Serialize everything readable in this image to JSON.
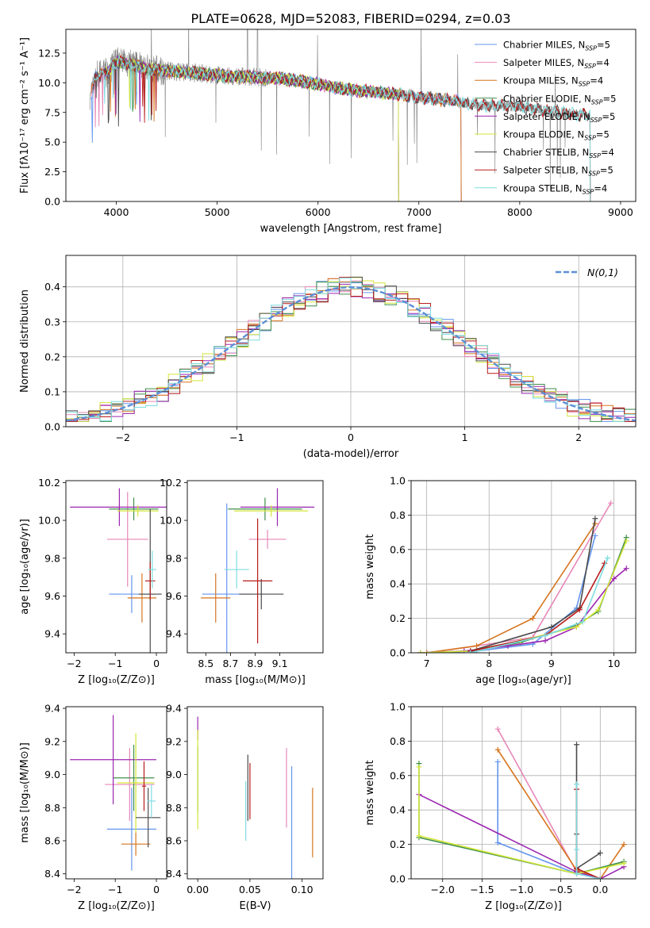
{
  "figure_title": "PLATE=0628, MJD=52083, FIBERID=0294, z=0.03",
  "colors": {
    "Chabrier MILES": "#6495ED",
    "Salpeter MILES": "#E787B8",
    "Kroupa MILES": "#D6751F",
    "Chabrier ELODIE": "#3F8F4A",
    "Salpeter ELODIE": "#9B27B0",
    "Kroupa ELODIE": "#D4E639",
    "Chabrier STELIB": "#4A4A4A",
    "Salpeter STELIB": "#B81C1C",
    "Kroupa STELIB": "#7FDDE0",
    "data": "#808080",
    "gaussian": "#5B8FD6"
  },
  "chart_data": [
    {
      "id": "spectrum",
      "type": "line",
      "title": "PLATE=0628, MJD=52083, FIBERID=0294, z=0.03",
      "xlabel": "wavelength [Angstrom, rest frame]",
      "ylabel": "Flux [fλ10⁻¹⁷ erg cm⁻² s⁻¹ A⁻¹]",
      "xlim": [
        3500,
        9150
      ],
      "ylim": [
        0,
        14.5
      ],
      "xticks": [
        4000,
        5000,
        6000,
        7000,
        8000,
        9000
      ],
      "yticks": [
        0.0,
        2.5,
        5.0,
        7.5,
        10.0,
        12.5
      ],
      "legend_position": "top-right",
      "legend": [
        {
          "name": "Chabrier MILES",
          "nssp": "5"
        },
        {
          "name": "Salpeter MILES",
          "nssp": "4"
        },
        {
          "name": "Kroupa MILES",
          "nssp": "4"
        },
        {
          "name": "Chabrier ELODIE",
          "nssp": "5"
        },
        {
          "name": "Salpeter ELODIE",
          "nssp": "5"
        },
        {
          "name": "Kroupa ELODIE",
          "nssp": "5"
        },
        {
          "name": "Chabrier STELIB",
          "nssp": "4"
        },
        {
          "name": "Salpeter STELIB",
          "nssp": "5"
        },
        {
          "name": "Kroupa STELIB",
          "nssp": "4"
        }
      ],
      "continuum": {
        "x": [
          3750,
          3800,
          3900,
          4000,
          4100,
          4300,
          4500,
          4800,
          5000,
          5300,
          5600,
          6000,
          6300,
          6600,
          7000,
          7400,
          7600,
          8000,
          8400,
          8600,
          8700
        ],
        "y": [
          9.0,
          10.6,
          10.8,
          11.8,
          11.6,
          11.2,
          11.0,
          10.8,
          10.6,
          10.5,
          10.4,
          9.9,
          9.4,
          9.2,
          8.8,
          8.4,
          8.1,
          8.0,
          7.5,
          7.3,
          7.4
        ]
      },
      "data_range": [
        3740,
        8640
      ],
      "model_ranges": {
        "MILES": [
          3750,
          7420
        ],
        "ELODIE": [
          3880,
          6800
        ],
        "STELIB": [
          3770,
          8700
        ]
      }
    },
    {
      "id": "residuals",
      "type": "histogram",
      "xlabel": "(data-model)/error",
      "ylabel": "Normed distribution",
      "xlim": [
        -2.5,
        2.5
      ],
      "ylim": [
        0,
        0.49
      ],
      "xticks": [
        -2,
        -1,
        0,
        1,
        2
      ],
      "yticks": [
        0.0,
        0.1,
        0.2,
        0.3,
        0.4
      ],
      "grid": true,
      "legend_position": "top-right",
      "gaussian": {
        "label": "N(0,1)",
        "mean": 0,
        "sigma": 1
      },
      "bin_width": 0.1,
      "bin_start": -2.5
    },
    {
      "id": "age_vs_Z",
      "type": "scatter",
      "xlabel": "Z [log₁₀(Z/Z⊙)]",
      "ylabel": "age  [log₁₀(age/yr)]",
      "xlim": [
        -2.2,
        0.25
      ],
      "ylim": [
        9.3,
        10.21
      ],
      "xticks": [
        -2,
        -1,
        0
      ],
      "yticks": [
        9.4,
        9.6,
        9.8,
        10.0,
        10.2
      ],
      "points": [
        {
          "model": "Chabrier MILES",
          "x": -0.6,
          "xerr": 0.55,
          "y": 9.61,
          "yerr": 0.1
        },
        {
          "model": "Salpeter MILES",
          "x": -0.7,
          "xerr": 0.5,
          "y": 9.9,
          "yerr": 0.25
        },
        {
          "model": "Kroupa MILES",
          "x": -0.35,
          "xerr": 0.35,
          "y": 9.59,
          "yerr": 0.13
        },
        {
          "model": "Chabrier ELODIE",
          "x": -0.55,
          "xerr": 0.6,
          "y": 10.06,
          "yerr": 0.06
        },
        {
          "model": "Salpeter ELODIE",
          "x": -0.9,
          "xerr": 1.2,
          "y": 10.07,
          "yerr": 0.1
        },
        {
          "model": "Kroupa ELODIE",
          "x": -0.45,
          "xerr": 0.5,
          "y": 10.05,
          "yerr": 0.03
        },
        {
          "model": "Chabrier STELIB",
          "x": -0.15,
          "xerr": 0.28,
          "y": 9.61,
          "yerr": 0.45
        },
        {
          "model": "Salpeter STELIB",
          "x": -0.15,
          "xerr": 0.12,
          "y": 9.68,
          "yerr": 0.1
        },
        {
          "model": "Kroupa STELIB",
          "x": -0.1,
          "xerr": 0.1,
          "y": 9.74,
          "yerr": 0.1
        }
      ]
    },
    {
      "id": "age_vs_mass",
      "type": "scatter",
      "xlabel": "mass [log₁₀(M/M⊙)]",
      "ylabel": "",
      "xlim": [
        8.35,
        9.45
      ],
      "ylim": [
        9.3,
        10.21
      ],
      "xticks": [
        8.5,
        8.7,
        8.9,
        9.1
      ],
      "yticks": [
        9.4,
        9.6,
        9.8,
        10.0,
        10.2
      ],
      "points": [
        {
          "model": "Chabrier MILES",
          "x": 8.67,
          "xerr": 0.2,
          "y": 9.61,
          "yerr": 0.48
        },
        {
          "model": "Salpeter MILES",
          "x": 9.0,
          "xerr": 0.15,
          "y": 9.9,
          "yerr": 0.05
        },
        {
          "model": "Kroupa MILES",
          "x": 8.58,
          "xerr": 0.12,
          "y": 9.59,
          "yerr": 0.13
        },
        {
          "model": "Chabrier ELODIE",
          "x": 8.98,
          "xerr": 0.3,
          "y": 10.06,
          "yerr": 0.06
        },
        {
          "model": "Salpeter ELODIE",
          "x": 9.08,
          "xerr": 0.3,
          "y": 10.07,
          "yerr": 0.1
        },
        {
          "model": "Kroupa ELODIE",
          "x": 9.03,
          "xerr": 0.3,
          "y": 10.05,
          "yerr": 0.03
        },
        {
          "model": "Chabrier STELIB",
          "x": 8.95,
          "xerr": 0.18,
          "y": 9.61,
          "yerr": 0.08
        },
        {
          "model": "Salpeter STELIB",
          "x": 8.92,
          "xerr": 0.12,
          "y": 9.68,
          "yerr": 0.33
        },
        {
          "model": "Kroupa STELIB",
          "x": 8.75,
          "xerr": 0.1,
          "y": 9.74,
          "yerr": 0.1
        }
      ]
    },
    {
      "id": "weight_vs_age",
      "type": "line",
      "xlabel": "age  [log₁₀(age/yr)]",
      "ylabel": "mass weight",
      "xlim": [
        6.75,
        10.35
      ],
      "ylim": [
        0,
        1.0
      ],
      "xticks": [
        7,
        8,
        9,
        10
      ],
      "yticks": [
        0.0,
        0.2,
        0.4,
        0.6,
        0.8,
        1.0
      ],
      "grid": true,
      "series": [
        {
          "model": "Chabrier MILES",
          "x": [
            7.0,
            7.8,
            8.7,
            9.4,
            9.7
          ],
          "y": [
            0.0,
            0.01,
            0.05,
            0.26,
            0.68
          ]
        },
        {
          "model": "Salpeter MILES",
          "x": [
            7.0,
            7.8,
            8.7,
            9.95
          ],
          "y": [
            0.0,
            0.04,
            0.09,
            0.87
          ]
        },
        {
          "model": "Kroupa MILES",
          "x": [
            7.0,
            7.8,
            8.7,
            9.7
          ],
          "y": [
            0.0,
            0.04,
            0.2,
            0.75
          ]
        },
        {
          "model": "Chabrier ELODIE",
          "x": [
            6.9,
            7.7,
            8.5,
            9.4,
            9.75,
            10.2
          ],
          "y": [
            0.0,
            0.01,
            0.06,
            0.16,
            0.24,
            0.67
          ]
        },
        {
          "model": "Salpeter ELODIE",
          "x": [
            6.9,
            7.6,
            8.3,
            8.9,
            9.4,
            10.0,
            10.2
          ],
          "y": [
            0.0,
            0.01,
            0.04,
            0.07,
            0.15,
            0.43,
            0.49
          ]
        },
        {
          "model": "Kroupa ELODIE",
          "x": [
            6.9,
            7.7,
            8.5,
            9.4,
            9.75,
            10.2
          ],
          "y": [
            0.0,
            0.01,
            0.07,
            0.15,
            0.25,
            0.65
          ]
        },
        {
          "model": "Chabrier STELIB",
          "x": [
            7.7,
            9.0,
            9.45,
            9.7
          ],
          "y": [
            0.01,
            0.15,
            0.26,
            0.78
          ]
        },
        {
          "model": "Salpeter STELIB",
          "x": [
            7.7,
            8.9,
            9.45,
            9.85
          ],
          "y": [
            0.01,
            0.1,
            0.25,
            0.52
          ]
        },
        {
          "model": "Kroupa STELIB",
          "x": [
            7.7,
            8.9,
            9.5,
            9.9
          ],
          "y": [
            0.0,
            0.1,
            0.18,
            0.55
          ]
        }
      ]
    },
    {
      "id": "mass_vs_Z",
      "type": "scatter",
      "xlabel": "Z [log₁₀(Z/Z⊙)]",
      "ylabel": "mass [log₁₀(M/M⊙)]",
      "xlim": [
        -2.2,
        0.25
      ],
      "ylim": [
        8.37,
        9.41
      ],
      "xticks": [
        -2,
        -1,
        0
      ],
      "yticks": [
        8.4,
        8.6,
        8.8,
        9.0,
        9.2,
        9.4
      ],
      "points": [
        {
          "model": "Chabrier MILES",
          "x": -0.6,
          "xerr": 0.6,
          "y": 8.67,
          "yerr": 0.25
        },
        {
          "model": "Salpeter MILES",
          "x": -0.65,
          "xerr": 0.6,
          "y": 8.94,
          "yerr": 0.22
        },
        {
          "model": "Kroupa MILES",
          "x": -0.5,
          "xerr": 0.35,
          "y": 8.58,
          "yerr": 0.07
        },
        {
          "model": "Chabrier ELODIE",
          "x": -0.55,
          "xerr": 0.5,
          "y": 8.98,
          "yerr": 0.2
        },
        {
          "model": "Salpeter ELODIE",
          "x": -1.05,
          "xerr": 1.05,
          "y": 9.09,
          "yerr": 0.27
        },
        {
          "model": "Kroupa ELODIE",
          "x": -0.5,
          "xerr": 0.45,
          "y": 8.95,
          "yerr": 0.3
        },
        {
          "model": "Chabrier STELIB",
          "x": -0.2,
          "xerr": 0.3,
          "y": 8.74,
          "yerr": 0.18
        },
        {
          "model": "Salpeter STELIB",
          "x": -0.3,
          "xerr": 0.05,
          "y": 8.93,
          "yerr": 0.15
        },
        {
          "model": "Kroupa STELIB",
          "x": -0.12,
          "xerr": 0.1,
          "y": 8.84,
          "yerr": 0.1
        }
      ]
    },
    {
      "id": "mass_vs_ebv",
      "type": "scatter",
      "xlabel": "E(B-V)",
      "ylabel": "",
      "xlim": [
        -0.01,
        0.12
      ],
      "ylim": [
        8.37,
        9.41
      ],
      "xticks": [
        0.0,
        0.05,
        0.1
      ],
      "yticks": [
        8.4,
        8.6,
        8.8,
        9.0,
        9.2,
        9.4
      ],
      "points": [
        {
          "model": "Chabrier MILES",
          "x": 0.09,
          "xerr": 0,
          "y": 8.67,
          "yerr": 0.38
        },
        {
          "model": "Salpeter MILES",
          "x": 0.085,
          "xerr": 0,
          "y": 8.92,
          "yerr": 0.24
        },
        {
          "model": "Kroupa MILES",
          "x": 0.11,
          "xerr": 0,
          "y": 8.71,
          "yerr": 0.21
        },
        {
          "model": "Chabrier ELODIE",
          "x": 0.0,
          "xerr": 0,
          "y": 8.97,
          "yerr": 0.2
        },
        {
          "model": "Salpeter ELODIE",
          "x": 0.0,
          "xerr": 0,
          "y": 9.28,
          "yerr": 0.07
        },
        {
          "model": "Kroupa ELODIE",
          "x": 0.0,
          "xerr": 0,
          "y": 8.97,
          "yerr": 0.3
        },
        {
          "model": "Chabrier STELIB",
          "x": 0.048,
          "xerr": 0,
          "y": 8.92,
          "yerr": 0.2
        },
        {
          "model": "Salpeter STELIB",
          "x": 0.05,
          "xerr": 0,
          "y": 8.9,
          "yerr": 0.17
        },
        {
          "model": "Kroupa STELIB",
          "x": 0.046,
          "xerr": 0,
          "y": 8.78,
          "yerr": 0.18
        }
      ]
    },
    {
      "id": "weight_vs_Z",
      "type": "line",
      "xlabel": "Z [log₁₀(Z/Z⊙)]",
      "ylabel": "mass weight",
      "xlim": [
        -2.4,
        0.45
      ],
      "ylim": [
        0,
        1.0
      ],
      "xticks": [
        -2.0,
        -1.5,
        -1.0,
        -0.5,
        0.0
      ],
      "yticks": [
        0.0,
        0.2,
        0.4,
        0.6,
        0.8,
        1.0
      ],
      "grid": true,
      "series": [
        {
          "model": "Chabrier MILES",
          "x": [
            -1.3,
            -1.3,
            -0.3,
            0.0
          ],
          "y": [
            0.68,
            0.21,
            0.03,
            0.0
          ]
        },
        {
          "model": "Salpeter MILES",
          "x": [
            -1.3,
            -0.3,
            0.0
          ],
          "y": [
            0.87,
            0.04,
            0.0
          ]
        },
        {
          "model": "Kroupa MILES",
          "x": [
            -1.3,
            -0.3,
            0.0,
            0.3
          ],
          "y": [
            0.75,
            0.05,
            0.0,
            0.2
          ]
        },
        {
          "model": "Chabrier ELODIE",
          "x": [
            -2.3,
            -2.3,
            -0.3,
            0.3
          ],
          "y": [
            0.67,
            0.24,
            0.03,
            0.1
          ]
        },
        {
          "model": "Salpeter ELODIE",
          "x": [
            -2.3,
            -0.3,
            0.0,
            0.3
          ],
          "y": [
            0.49,
            0.04,
            0.0,
            0.07
          ]
        },
        {
          "model": "Kroupa ELODIE",
          "x": [
            -2.3,
            -2.3,
            -0.3,
            0.3
          ],
          "y": [
            0.65,
            0.25,
            0.03,
            0.09
          ]
        },
        {
          "model": "Chabrier STELIB",
          "x": [
            -0.3,
            -0.3,
            -0.3,
            0.0
          ],
          "y": [
            0.78,
            0.26,
            0.06,
            0.15
          ]
        },
        {
          "model": "Salpeter STELIB",
          "x": [
            -0.3,
            -0.3,
            0.0
          ],
          "y": [
            0.52,
            0.06,
            0.0
          ]
        },
        {
          "model": "Kroupa STELIB",
          "x": [
            -0.3,
            -0.3,
            -0.3,
            0.0
          ],
          "y": [
            0.55,
            0.17,
            0.03,
            0.0
          ]
        }
      ]
    }
  ]
}
